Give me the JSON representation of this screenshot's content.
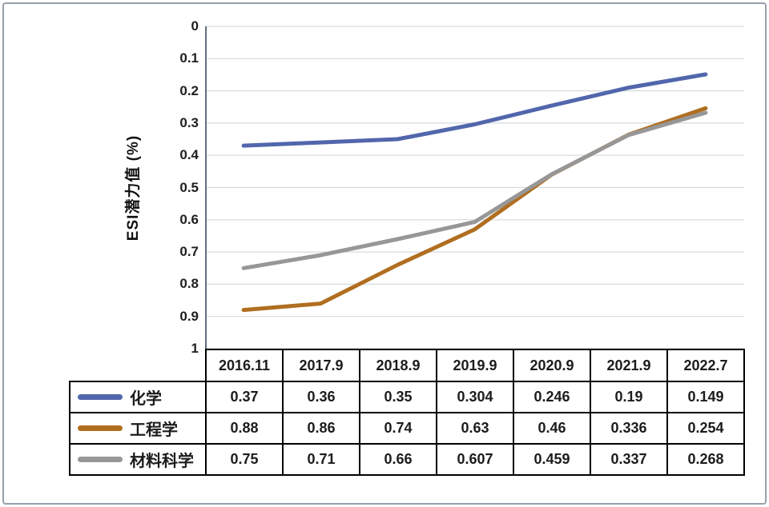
{
  "chart": {
    "y_axis_title": "ESI潜力值 (%)",
    "y_ticks": [
      "0",
      "0.1",
      "0.2",
      "0.3",
      "0.4",
      "0.5",
      "0.6",
      "0.7",
      "0.8",
      "0.9",
      "1"
    ]
  },
  "chart_data": {
    "type": "line",
    "categories": [
      "2016.11",
      "2017.9",
      "2018.9",
      "2019.9",
      "2020.9",
      "2021.9",
      "2022.7"
    ],
    "series": [
      {
        "name": "化学",
        "color": "#5166ac",
        "values": [
          0.37,
          0.36,
          0.35,
          0.304,
          0.246,
          0.19,
          0.149
        ]
      },
      {
        "name": "工程学",
        "color": "#b06e20",
        "values": [
          0.88,
          0.86,
          0.74,
          0.63,
          0.46,
          0.336,
          0.254
        ]
      },
      {
        "name": "材料科学",
        "color": "#979797",
        "values": [
          0.75,
          0.71,
          0.66,
          0.607,
          0.459,
          0.337,
          0.268
        ]
      }
    ],
    "title": "",
    "xlabel": "",
    "ylabel": "ESI潜力值 (%)",
    "ylim": [
      0,
      1
    ],
    "y_tick_step": 0.1,
    "y_axis_inverted": true,
    "grid": true,
    "legend_position": "table-first-column",
    "gridline_color": "#d5d9de",
    "axis_line_color": "#5f6e80"
  }
}
